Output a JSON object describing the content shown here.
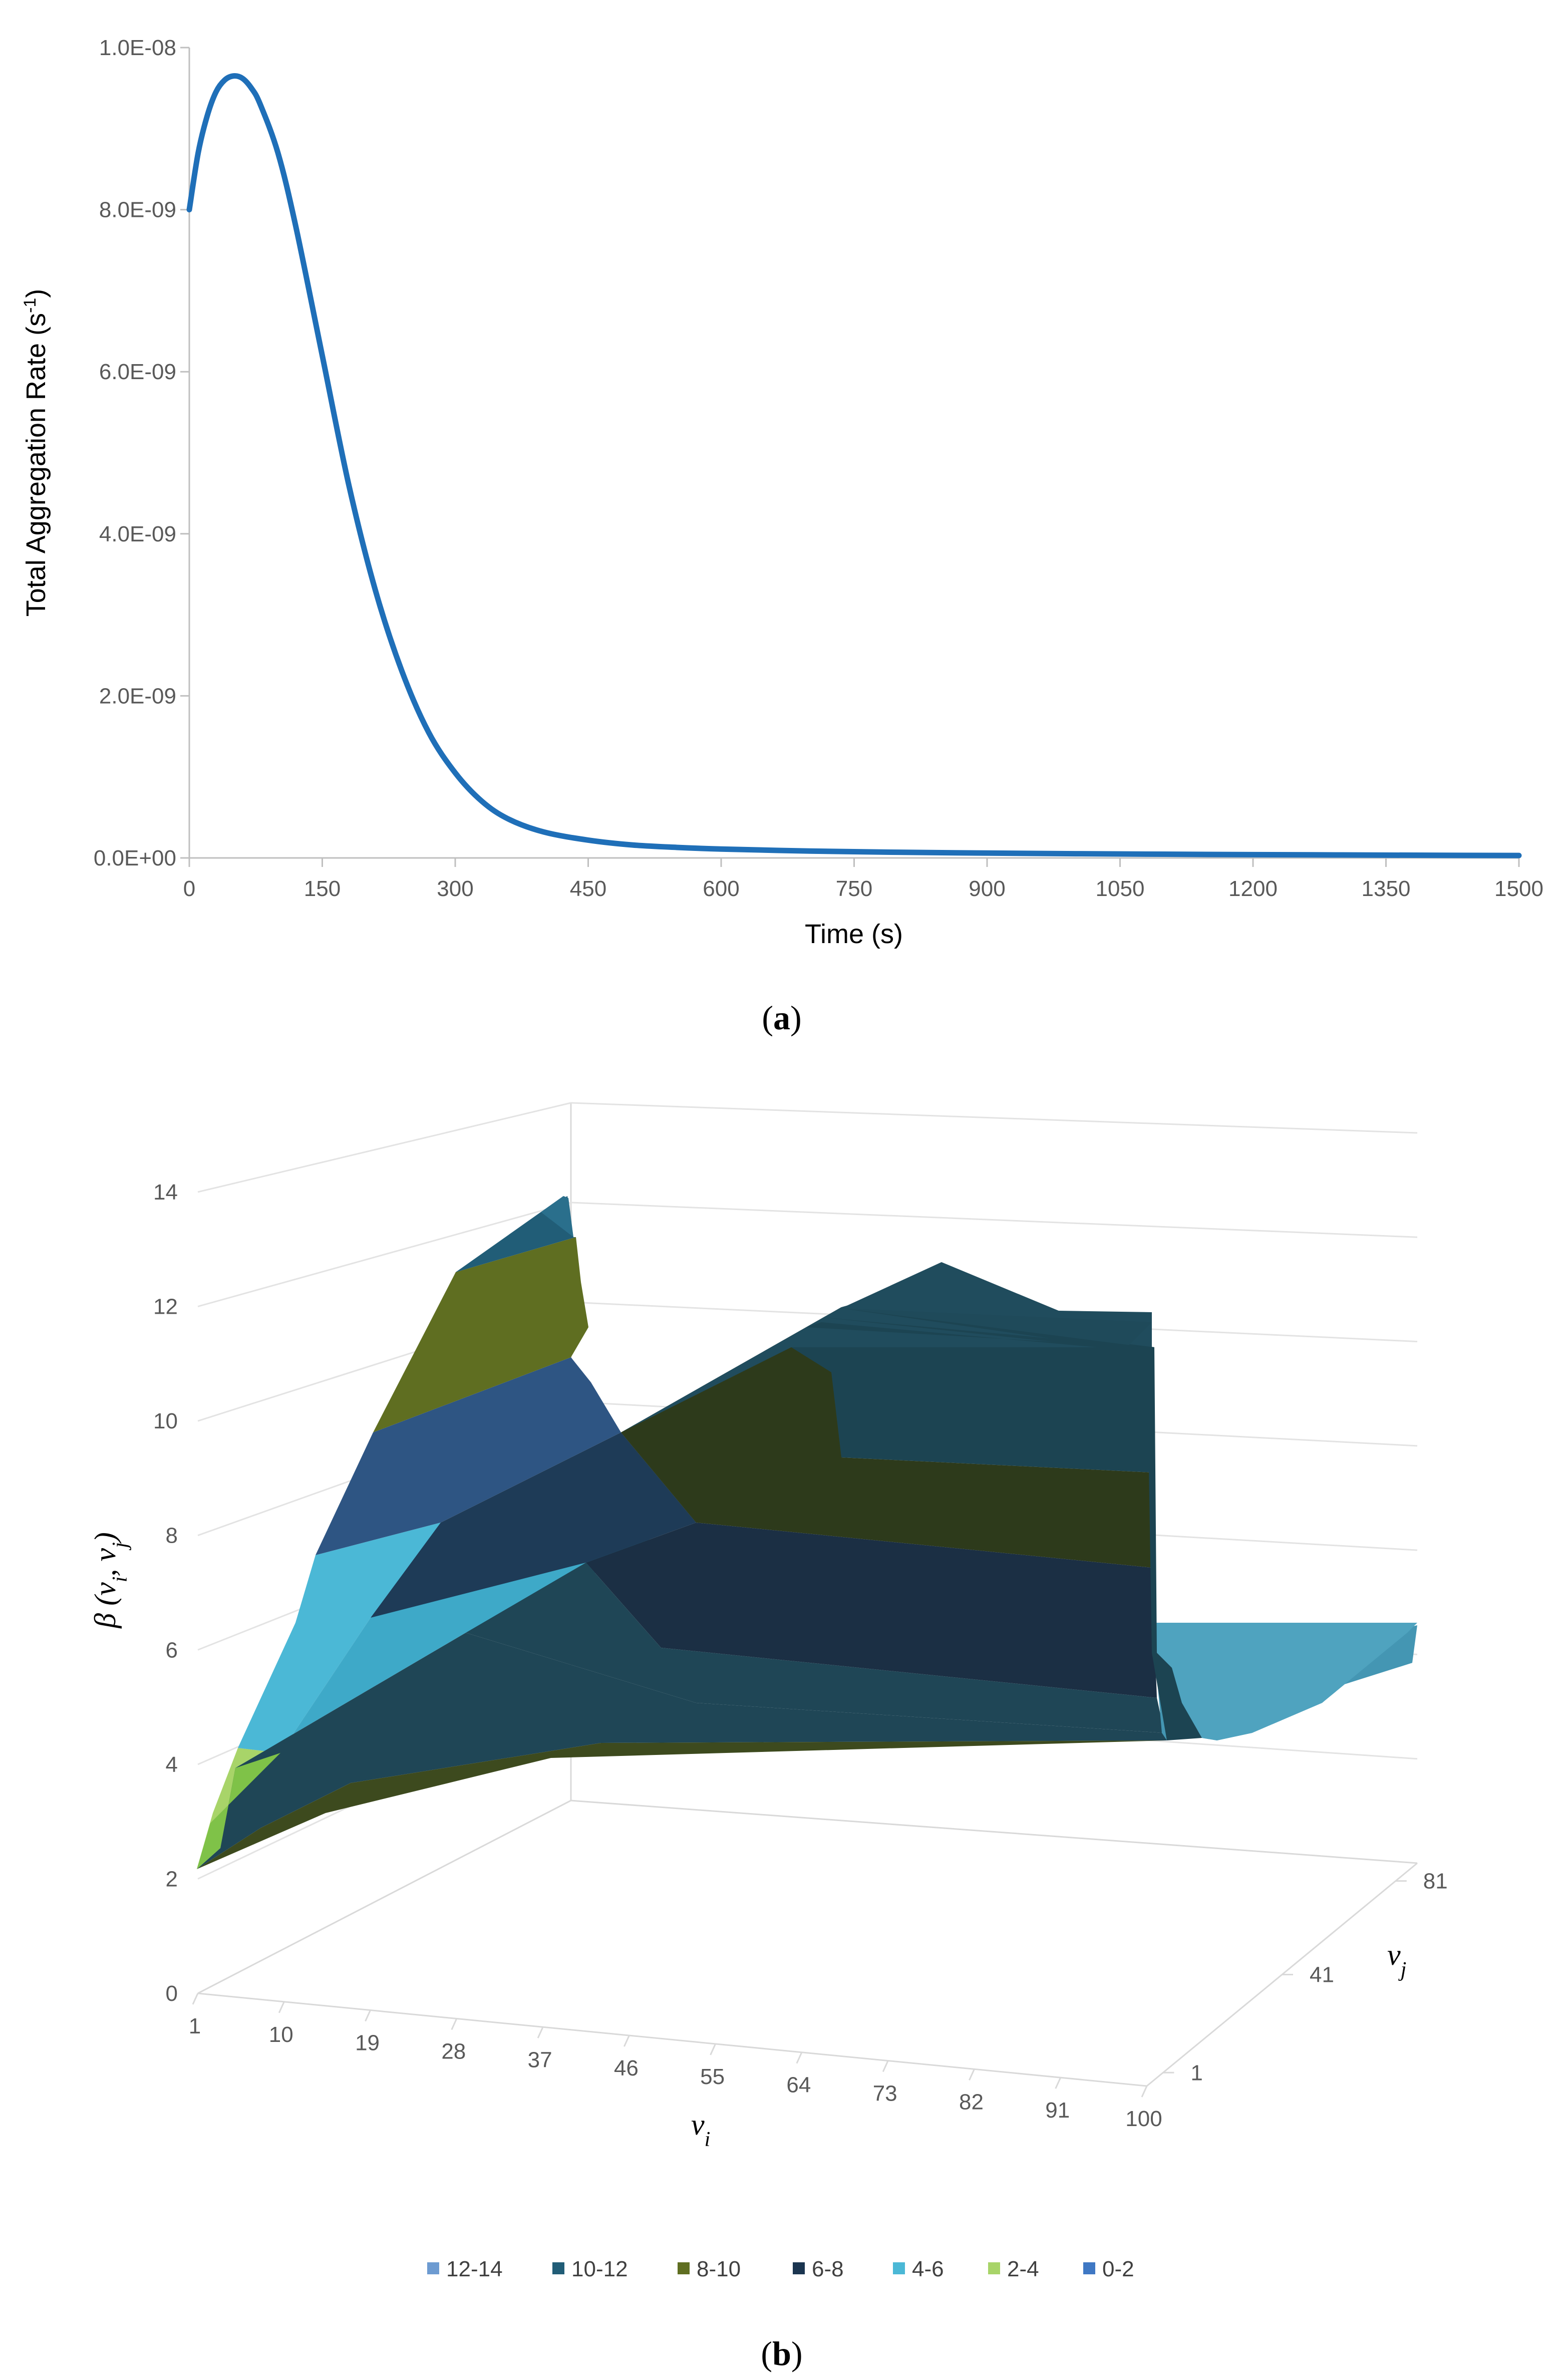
{
  "panel_a_label": "a",
  "panel_b_label": "b",
  "chart_data": [
    {
      "type": "line",
      "panel": "a",
      "xlabel": "Time (s)",
      "ylabel": "Total Aggregation Rate (s",
      "ylabel_sup": "-1",
      "ylabel_end": ")",
      "xlim": [
        0,
        1500
      ],
      "ylim": [
        0,
        1e-08
      ],
      "x_ticks": [
        "0",
        "150",
        "300",
        "450",
        "600",
        "750",
        "900",
        "1050",
        "1200",
        "1350",
        "1500"
      ],
      "y_ticks": [
        "0.0E+00",
        "2.0E-09",
        "4.0E-09",
        "6.0E-09",
        "8.0E-09",
        "1.0E-08"
      ],
      "y_tick_values": [
        0,
        2e-09,
        4e-09,
        6e-09,
        8e-09,
        1e-08
      ],
      "series": [
        {
          "name": "Total Aggregation Rate",
          "color": "#1f6fb8",
          "x": [
            0,
            10,
            20,
            30,
            40,
            50,
            60,
            70,
            80,
            100,
            120,
            150,
            180,
            210,
            240,
            270,
            300,
            330,
            360,
            400,
            450,
            500,
            550,
            600,
            700,
            800,
            900,
            1000,
            1100,
            1200,
            1300,
            1400,
            1500
          ],
          "y": [
            8e-09,
            8.7e-09,
            9.15e-09,
            9.45e-09,
            9.6e-09,
            9.65e-09,
            9.62e-09,
            9.5e-09,
            9.3e-09,
            8.7e-09,
            7.8e-09,
            6.2e-09,
            4.6e-09,
            3.3e-09,
            2.3e-09,
            1.55e-09,
            1.05e-09,
            7e-10,
            4.8e-10,
            3.2e-10,
            2.2e-10,
            1.6e-10,
            1.3e-10,
            1.1e-10,
            8.5e-11,
            7e-11,
            6e-11,
            5.2e-11,
            4.6e-11,
            4.1e-11,
            3.7e-11,
            3.3e-11,
            3e-11
          ]
        }
      ]
    },
    {
      "type": "surface3d",
      "panel": "b",
      "zlabel_main": "β (",
      "zlabel_v1": "v",
      "zlabel_sub1": "i",
      "zlabel_sep": ", ",
      "zlabel_v2": "v",
      "zlabel_sub2": "j",
      "zlabel_end": ")",
      "xlabel_main": "v",
      "xlabel_sub": "i",
      "ylabel_main": "v",
      "ylabel_sub": "j",
      "z_ticks": [
        "0",
        "2",
        "4",
        "6",
        "8",
        "10",
        "12",
        "14"
      ],
      "zlim": [
        0,
        14
      ],
      "x_ticks": [
        "1",
        "10",
        "19",
        "28",
        "37",
        "46",
        "55",
        "64",
        "73",
        "82",
        "91",
        "100"
      ],
      "y_ticks": [
        "1",
        "41",
        "81"
      ],
      "legend": [
        {
          "label": "12-14",
          "color": "#6d9bd1"
        },
        {
          "label": "10-12",
          "color": "#215d77"
        },
        {
          "label": "8-10",
          "color": "#5f6e21"
        },
        {
          "label": "6-8",
          "color": "#1b3550"
        },
        {
          "label": "4-6",
          "color": "#4bb8d6"
        },
        {
          "label": "2-4",
          "color": "#a8d469"
        },
        {
          "label": "0-2",
          "color": "#3f78c4"
        }
      ]
    }
  ],
  "bands_b": [
    {
      "name": "band-10-12",
      "color": "#215d77"
    },
    {
      "name": "band-8-10",
      "color": "#5f6e21"
    },
    {
      "name": "band-6-8",
      "color": "#2e5583"
    },
    {
      "name": "band-4-6",
      "color": "#4bb8d6"
    },
    {
      "name": "band-2-4",
      "color": "#a8d469"
    }
  ]
}
